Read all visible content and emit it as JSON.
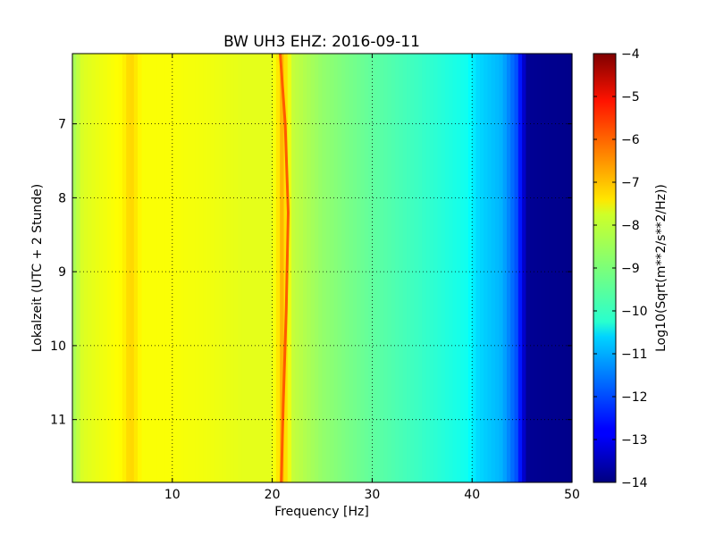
{
  "chart_data": {
    "type": "heatmap",
    "title": "BW UH3 EHZ: 2016-09-11",
    "xlabel": "Frequency [Hz]",
    "ylabel": "Lokalzeit (UTC + 2 Stunde)",
    "xlim": [
      0,
      50
    ],
    "ylim": [
      11.85,
      6.05
    ],
    "x_ticks": [
      10,
      20,
      30,
      40,
      50
    ],
    "y_ticks": [
      7,
      8,
      9,
      10,
      11
    ],
    "grid": true,
    "colormap": "jet",
    "colorbar": {
      "label": "Log10(Sqrt(m**2/s**2/Hz))",
      "range": [
        -14,
        -4
      ],
      "ticks": [
        -4,
        -5,
        -6,
        -7,
        -8,
        -9,
        -10,
        -11,
        -12,
        -13,
        -14
      ],
      "position": "right"
    },
    "spectrum_profile": {
      "frequency_hz": [
        0,
        1,
        3,
        5,
        5.8,
        7,
        10,
        14,
        17,
        20,
        20.6,
        21,
        21.4,
        22,
        25,
        30,
        35,
        39.5,
        40.5,
        43,
        44.5,
        45.5,
        50
      ],
      "log10_amplitude": [
        -8.7,
        -8.1,
        -7.9,
        -7.7,
        -7.3,
        -7.8,
        -7.8,
        -7.9,
        -8.0,
        -8.0,
        -7.5,
        -7.0,
        -7.5,
        -8.3,
        -8.8,
        -9.3,
        -9.7,
        -10.1,
        -10.6,
        -11.0,
        -12.0,
        -13.8,
        -13.9
      ]
    },
    "spectral_line": {
      "name": "",
      "frequency_hz": [
        20.8,
        21.3,
        21.6,
        21.4,
        21.1,
        20.9
      ],
      "time_hours": [
        6.05,
        7.0,
        8.2,
        9.5,
        10.8,
        11.85
      ]
    }
  }
}
